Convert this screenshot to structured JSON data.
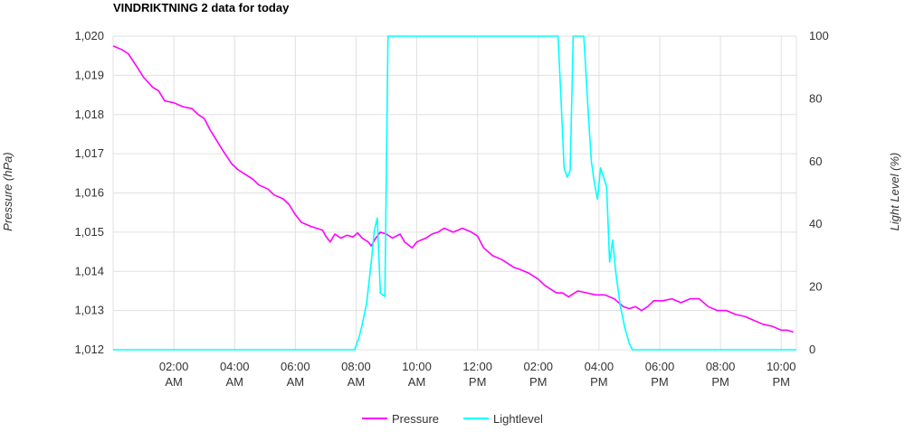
{
  "colors": {
    "pressure": "#ff00ff",
    "light": "#00ffff",
    "grid": "#e0e0e0"
  },
  "chart_data": {
    "type": "line",
    "title": "VINDRIKTNING 2 data for today",
    "ylabel": "Pressure (hPa)",
    "y2label": "Light Level (%)",
    "ylim": [
      1012,
      1020
    ],
    "y2lim": [
      0,
      100
    ],
    "xlim": [
      0,
      22.5
    ],
    "grid": true,
    "legend_position": "bottom",
    "y_ticks": [
      "1,012",
      "1,013",
      "1,014",
      "1,015",
      "1,016",
      "1,017",
      "1,018",
      "1,019",
      "1,020"
    ],
    "y2_ticks": [
      "0",
      "20",
      "40",
      "60",
      "80",
      "100"
    ],
    "x_ticks": [
      {
        "t": "02:00",
        "p": "AM"
      },
      {
        "t": "04:00",
        "p": "AM"
      },
      {
        "t": "06:00",
        "p": "AM"
      },
      {
        "t": "08:00",
        "p": "AM"
      },
      {
        "t": "10:00",
        "p": "AM"
      },
      {
        "t": "12:00",
        "p": "PM"
      },
      {
        "t": "02:00",
        "p": "PM"
      },
      {
        "t": "04:00",
        "p": "PM"
      },
      {
        "t": "06:00",
        "p": "PM"
      },
      {
        "t": "08:00",
        "p": "PM"
      },
      {
        "t": "10:00",
        "p": "PM"
      }
    ],
    "series": [
      {
        "name": "Pressure",
        "axis": "left",
        "points": [
          [
            0.0,
            1019.75
          ],
          [
            0.3,
            1019.65
          ],
          [
            0.5,
            1019.55
          ],
          [
            0.8,
            1019.2
          ],
          [
            1.0,
            1018.95
          ],
          [
            1.3,
            1018.7
          ],
          [
            1.5,
            1018.6
          ],
          [
            1.7,
            1018.35
          ],
          [
            2.0,
            1018.3
          ],
          [
            2.3,
            1018.2
          ],
          [
            2.6,
            1018.15
          ],
          [
            2.8,
            1018.0
          ],
          [
            3.0,
            1017.9
          ],
          [
            3.2,
            1017.6
          ],
          [
            3.4,
            1017.35
          ],
          [
            3.6,
            1017.1
          ],
          [
            3.9,
            1016.75
          ],
          [
            4.1,
            1016.6
          ],
          [
            4.3,
            1016.5
          ],
          [
            4.6,
            1016.35
          ],
          [
            4.8,
            1016.2
          ],
          [
            5.1,
            1016.1
          ],
          [
            5.3,
            1015.95
          ],
          [
            5.6,
            1015.85
          ],
          [
            5.8,
            1015.7
          ],
          [
            6.0,
            1015.45
          ],
          [
            6.2,
            1015.25
          ],
          [
            6.5,
            1015.15
          ],
          [
            6.7,
            1015.1
          ],
          [
            6.9,
            1015.05
          ],
          [
            7.0,
            1014.9
          ],
          [
            7.15,
            1014.75
          ],
          [
            7.3,
            1014.95
          ],
          [
            7.5,
            1014.85
          ],
          [
            7.7,
            1014.92
          ],
          [
            7.9,
            1014.88
          ],
          [
            8.05,
            1014.98
          ],
          [
            8.2,
            1014.85
          ],
          [
            8.4,
            1014.75
          ],
          [
            8.5,
            1014.65
          ],
          [
            8.65,
            1014.85
          ],
          [
            8.8,
            1015.0
          ],
          [
            9.0,
            1014.95
          ],
          [
            9.2,
            1014.85
          ],
          [
            9.45,
            1014.95
          ],
          [
            9.6,
            1014.75
          ],
          [
            9.85,
            1014.6
          ],
          [
            10.0,
            1014.75
          ],
          [
            10.3,
            1014.85
          ],
          [
            10.5,
            1014.95
          ],
          [
            10.7,
            1015.0
          ],
          [
            10.9,
            1015.1
          ],
          [
            11.2,
            1015.0
          ],
          [
            11.5,
            1015.1
          ],
          [
            11.8,
            1015.0
          ],
          [
            12.0,
            1014.9
          ],
          [
            12.2,
            1014.6
          ],
          [
            12.5,
            1014.4
          ],
          [
            12.8,
            1014.3
          ],
          [
            13.0,
            1014.2
          ],
          [
            13.2,
            1014.1
          ],
          [
            13.4,
            1014.05
          ],
          [
            13.7,
            1013.95
          ],
          [
            14.0,
            1013.8
          ],
          [
            14.2,
            1013.65
          ],
          [
            14.4,
            1013.55
          ],
          [
            14.6,
            1013.45
          ],
          [
            14.8,
            1013.45
          ],
          [
            15.0,
            1013.35
          ],
          [
            15.3,
            1013.5
          ],
          [
            15.6,
            1013.45
          ],
          [
            15.9,
            1013.4
          ],
          [
            16.2,
            1013.4
          ],
          [
            16.5,
            1013.3
          ],
          [
            16.8,
            1013.1
          ],
          [
            17.0,
            1013.05
          ],
          [
            17.2,
            1013.1
          ],
          [
            17.4,
            1013.0
          ],
          [
            17.6,
            1013.1
          ],
          [
            17.8,
            1013.25
          ],
          [
            18.1,
            1013.25
          ],
          [
            18.4,
            1013.3
          ],
          [
            18.7,
            1013.2
          ],
          [
            19.0,
            1013.3
          ],
          [
            19.3,
            1013.3
          ],
          [
            19.6,
            1013.1
          ],
          [
            19.9,
            1013.0
          ],
          [
            20.2,
            1013.0
          ],
          [
            20.5,
            1012.9
          ],
          [
            20.8,
            1012.85
          ],
          [
            21.1,
            1012.75
          ],
          [
            21.4,
            1012.65
          ],
          [
            21.7,
            1012.6
          ],
          [
            22.0,
            1012.5
          ],
          [
            22.2,
            1012.5
          ],
          [
            22.4,
            1012.45
          ]
        ]
      },
      {
        "name": "Lightlevel",
        "axis": "right",
        "points": [
          [
            0.0,
            0
          ],
          [
            7.95,
            0
          ],
          [
            8.1,
            4
          ],
          [
            8.2,
            8
          ],
          [
            8.35,
            15
          ],
          [
            8.5,
            28
          ],
          [
            8.6,
            38
          ],
          [
            8.7,
            42
          ],
          [
            8.8,
            18
          ],
          [
            8.95,
            17
          ],
          [
            9.05,
            100
          ],
          [
            14.65,
            100
          ],
          [
            14.75,
            80
          ],
          [
            14.85,
            58
          ],
          [
            14.95,
            55
          ],
          [
            15.05,
            57
          ],
          [
            15.15,
            100
          ],
          [
            15.5,
            100
          ],
          [
            15.65,
            75
          ],
          [
            15.75,
            60
          ],
          [
            15.85,
            53
          ],
          [
            15.95,
            48
          ],
          [
            16.05,
            58
          ],
          [
            16.15,
            55
          ],
          [
            16.25,
            52
          ],
          [
            16.35,
            28
          ],
          [
            16.45,
            35
          ],
          [
            16.55,
            25
          ],
          [
            16.7,
            14
          ],
          [
            16.85,
            7
          ],
          [
            17.0,
            2
          ],
          [
            17.1,
            0
          ],
          [
            22.5,
            0
          ]
        ]
      }
    ]
  }
}
